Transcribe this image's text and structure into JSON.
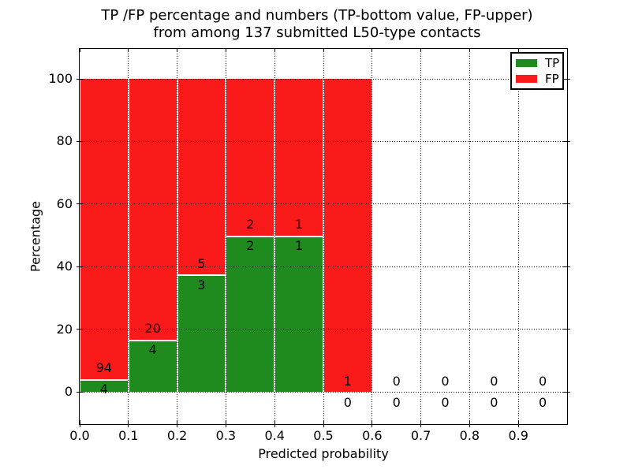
{
  "title": {
    "line1": "TP /FP percentage and numbers (TP-bottom value, FP-upper)",
    "line2": "from among 137 submitted L50-type contacts"
  },
  "axes": {
    "xlabel": "Predicted probability",
    "ylabel": "Percentage"
  },
  "legend": {
    "entries": [
      {
        "label": "TP",
        "color": "#1f8b1f"
      },
      {
        "label": "FP",
        "color": "#fb1a1a"
      }
    ]
  },
  "chart_data": {
    "type": "bar",
    "stacked": true,
    "normalization": "percent of bin total (TP+FP stack to 100%)",
    "title": "TP /FP percentage and numbers (TP-bottom value, FP-upper) from among 137 submitted L50-type contacts",
    "xlabel": "Predicted probability",
    "ylabel": "Percentage",
    "xlim": [
      0.0,
      1.0
    ],
    "ylim": [
      -10,
      110
    ],
    "grid": true,
    "legend_position": "upper right",
    "total_submitted_contacts": 137,
    "bin_width": 0.1,
    "bin_starts": [
      0.0,
      0.1,
      0.2,
      0.3,
      0.4,
      0.5,
      0.6,
      0.7,
      0.8,
      0.9
    ],
    "x_tick_labels": [
      "0.0",
      "0.1",
      "0.2",
      "0.3",
      "0.4",
      "0.5",
      "0.6",
      "0.7",
      "0.8",
      "0.9"
    ],
    "y_tick_values": [
      0,
      20,
      40,
      60,
      80,
      100
    ],
    "series": [
      {
        "name": "TP",
        "color": "#1f8b1f",
        "counts": [
          4,
          4,
          3,
          2,
          1,
          0,
          0,
          0,
          0,
          0
        ]
      },
      {
        "name": "FP",
        "color": "#fb1a1a",
        "counts": [
          94,
          20,
          5,
          2,
          1,
          1,
          0,
          0,
          0,
          0
        ]
      }
    ]
  }
}
